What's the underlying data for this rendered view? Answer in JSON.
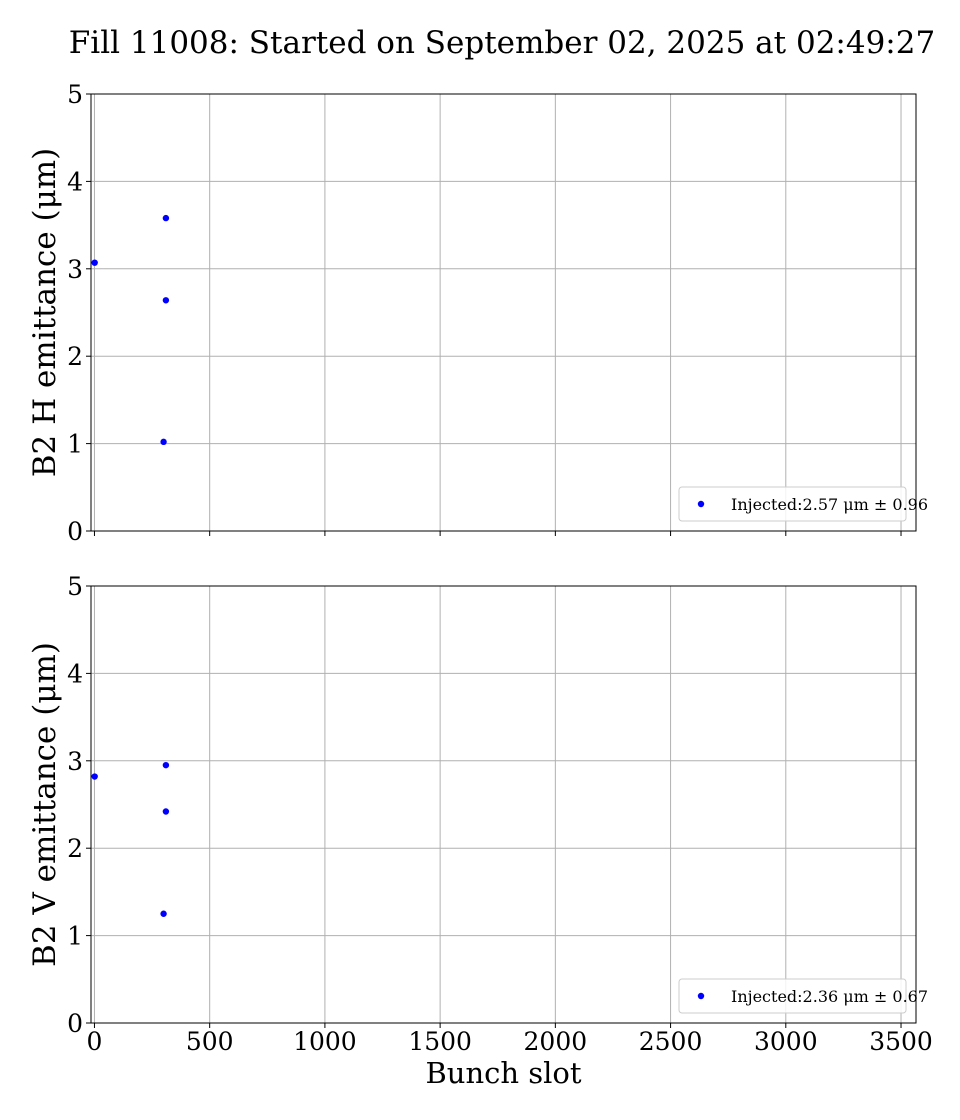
{
  "figure": {
    "title": "Fill 11008: Started on September 02, 2025 at 02:49:27"
  },
  "chart_data": [
    {
      "type": "scatter",
      "xlabel": "",
      "ylabel": "B2 H emittance (μm)",
      "xlim": [
        -15,
        3565
      ],
      "ylim": [
        0,
        5
      ],
      "x_ticks": [
        0,
        500,
        1000,
        1500,
        2000,
        2500,
        3000,
        3500
      ],
      "x_tick_labels_shown": false,
      "y_ticks": [
        0,
        1,
        2,
        3,
        4,
        5
      ],
      "grid": true,
      "legend_position": "lower-right",
      "series": [
        {
          "name": "Injected:2.57 μm ± 0.96",
          "color": "#0000ff",
          "x": [
            1,
            300,
            310,
            310
          ],
          "y": [
            3.07,
            1.02,
            3.58,
            2.64
          ]
        }
      ]
    },
    {
      "type": "scatter",
      "xlabel": "Bunch slot",
      "ylabel": "B2 V emittance (μm)",
      "xlim": [
        -15,
        3565
      ],
      "ylim": [
        0,
        5
      ],
      "x_ticks": [
        0,
        500,
        1000,
        1500,
        2000,
        2500,
        3000,
        3500
      ],
      "x_tick_labels_shown": true,
      "y_ticks": [
        0,
        1,
        2,
        3,
        4,
        5
      ],
      "grid": true,
      "legend_position": "lower-right",
      "series": [
        {
          "name": "Injected:2.36 μm ± 0.67",
          "color": "#0000ff",
          "x": [
            1,
            300,
            310,
            310
          ],
          "y": [
            2.82,
            1.25,
            2.95,
            2.42
          ]
        }
      ]
    }
  ]
}
